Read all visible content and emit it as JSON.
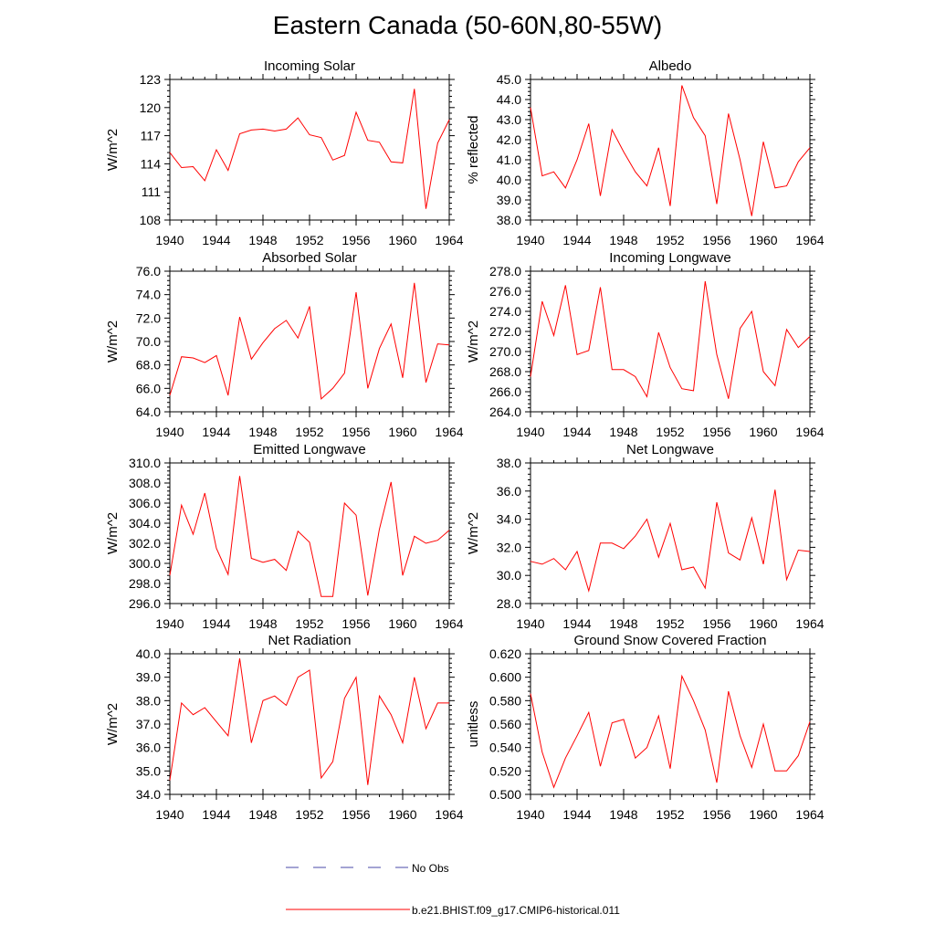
{
  "title": "Eastern Canada (50-60N,80-55W)",
  "colors": {
    "model_line": "#ff0000",
    "obs_line": "#4a4aa8",
    "axis": "#000000"
  },
  "legend": [
    {
      "label": "No Obs",
      "style": "dashed",
      "color": "#4a4aa8"
    },
    {
      "label": "b.e21.BHIST.f09_g17.CMIP6-historical.011",
      "style": "solid",
      "color": "#ff0000"
    }
  ],
  "chart_data": [
    {
      "type": "line",
      "title": "Incoming Solar",
      "xlabel": "",
      "ylabel": "W/m^2",
      "xlim": [
        1940,
        1964
      ],
      "ylim": [
        108,
        123
      ],
      "xticks": [
        1940,
        1944,
        1948,
        1952,
        1956,
        1960,
        1964
      ],
      "yticks": [
        108,
        111,
        114,
        117,
        120,
        123
      ],
      "ytick_labels": [
        "108",
        "111",
        "114",
        "117",
        "120",
        "123"
      ],
      "x": [
        1940,
        1941,
        1942,
        1943,
        1944,
        1945,
        1946,
        1947,
        1948,
        1949,
        1950,
        1951,
        1952,
        1953,
        1954,
        1955,
        1956,
        1957,
        1958,
        1959,
        1960,
        1961,
        1962,
        1963,
        1964
      ],
      "series": [
        {
          "name": "b.e21.BHIST.f09_g17.CMIP6-historical.011",
          "values": [
            115.2,
            113.6,
            113.7,
            112.2,
            115.5,
            113.3,
            117.2,
            117.6,
            117.7,
            117.5,
            117.7,
            118.9,
            117.1,
            116.8,
            114.4,
            114.9,
            119.5,
            116.5,
            116.3,
            114.2,
            114.1,
            122.0,
            109.2,
            116.2,
            118.7
          ]
        }
      ]
    },
    {
      "type": "line",
      "title": "Albedo",
      "xlabel": "",
      "ylabel": "% reflected",
      "xlim": [
        1940,
        1964
      ],
      "ylim": [
        38.0,
        45.0
      ],
      "xticks": [
        1940,
        1944,
        1948,
        1952,
        1956,
        1960,
        1964
      ],
      "yticks": [
        38,
        39,
        40,
        41,
        42,
        43,
        44,
        45
      ],
      "ytick_labels": [
        "38.0",
        "39.0",
        "40.0",
        "41.0",
        "42.0",
        "43.0",
        "44.0",
        "45.0"
      ],
      "x": [
        1940,
        1941,
        1942,
        1943,
        1944,
        1945,
        1946,
        1947,
        1948,
        1949,
        1950,
        1951,
        1952,
        1953,
        1954,
        1955,
        1956,
        1957,
        1958,
        1959,
        1960,
        1961,
        1962,
        1963,
        1964
      ],
      "series": [
        {
          "name": "b.e21.BHIST.f09_g17.CMIP6-historical.011",
          "values": [
            43.6,
            40.2,
            40.4,
            39.6,
            41.0,
            42.8,
            39.2,
            42.5,
            41.4,
            40.4,
            39.7,
            41.6,
            38.7,
            44.7,
            43.1,
            42.2,
            38.8,
            43.3,
            41.0,
            38.2,
            41.9,
            39.6,
            39.7,
            40.9,
            41.6
          ]
        }
      ]
    },
    {
      "type": "line",
      "title": "Absorbed Solar",
      "xlabel": "",
      "ylabel": "W/m^2",
      "xlim": [
        1940,
        1964
      ],
      "ylim": [
        64.0,
        76.0
      ],
      "xticks": [
        1940,
        1944,
        1948,
        1952,
        1956,
        1960,
        1964
      ],
      "yticks": [
        64,
        66,
        68,
        70,
        72,
        74,
        76
      ],
      "ytick_labels": [
        "64.0",
        "66.0",
        "68.0",
        "70.0",
        "72.0",
        "74.0",
        "76.0"
      ],
      "x": [
        1940,
        1941,
        1942,
        1943,
        1944,
        1945,
        1946,
        1947,
        1948,
        1949,
        1950,
        1951,
        1952,
        1953,
        1954,
        1955,
        1956,
        1957,
        1958,
        1959,
        1960,
        1961,
        1962,
        1963,
        1964
      ],
      "series": [
        {
          "name": "b.e21.BHIST.f09_g17.CMIP6-historical.011",
          "values": [
            65.4,
            68.7,
            68.6,
            68.2,
            68.8,
            65.4,
            72.1,
            68.5,
            69.9,
            71.1,
            71.8,
            70.3,
            73.0,
            65.1,
            66.0,
            67.3,
            74.2,
            66.0,
            69.4,
            71.5,
            66.9,
            75.0,
            66.5,
            69.8,
            69.7
          ]
        }
      ]
    },
    {
      "type": "line",
      "title": "Incoming Longwave",
      "xlabel": "",
      "ylabel": "W/m^2",
      "xlim": [
        1940,
        1964
      ],
      "ylim": [
        264.0,
        278.0
      ],
      "xticks": [
        1940,
        1944,
        1948,
        1952,
        1956,
        1960,
        1964
      ],
      "yticks": [
        264,
        266,
        268,
        270,
        272,
        274,
        276,
        278
      ],
      "ytick_labels": [
        "264.0",
        "266.0",
        "268.0",
        "270.0",
        "272.0",
        "274.0",
        "276.0",
        "278.0"
      ],
      "x": [
        1940,
        1941,
        1942,
        1943,
        1944,
        1945,
        1946,
        1947,
        1948,
        1949,
        1950,
        1951,
        1952,
        1953,
        1954,
        1955,
        1956,
        1957,
        1958,
        1959,
        1960,
        1961,
        1962,
        1963,
        1964
      ],
      "series": [
        {
          "name": "b.e21.BHIST.f09_g17.CMIP6-historical.011",
          "values": [
            267.5,
            275.0,
            271.6,
            276.6,
            269.7,
            270.1,
            276.4,
            268.2,
            268.2,
            267.5,
            265.5,
            271.9,
            268.4,
            266.3,
            266.1,
            277.0,
            269.7,
            265.3,
            272.3,
            274.0,
            268.0,
            266.6,
            272.2,
            270.4,
            271.5
          ]
        }
      ]
    },
    {
      "type": "line",
      "title": "Emitted Longwave",
      "xlabel": "",
      "ylabel": "W/m^2",
      "xlim": [
        1940,
        1964
      ],
      "ylim": [
        296.0,
        310.0
      ],
      "xticks": [
        1940,
        1944,
        1948,
        1952,
        1956,
        1960,
        1964
      ],
      "yticks": [
        296,
        298,
        300,
        302,
        304,
        306,
        308,
        310
      ],
      "ytick_labels": [
        "296.0",
        "298.0",
        "300.0",
        "302.0",
        "304.0",
        "306.0",
        "308.0",
        "310.0"
      ],
      "x": [
        1940,
        1941,
        1942,
        1943,
        1944,
        1945,
        1946,
        1947,
        1948,
        1949,
        1950,
        1951,
        1952,
        1953,
        1954,
        1955,
        1956,
        1957,
        1958,
        1959,
        1960,
        1961,
        1962,
        1963,
        1964
      ],
      "series": [
        {
          "name": "b.e21.BHIST.f09_g17.CMIP6-historical.011",
          "values": [
            298.8,
            305.8,
            302.9,
            307.0,
            301.5,
            298.9,
            308.7,
            300.5,
            300.1,
            300.4,
            299.3,
            303.2,
            302.1,
            296.7,
            296.7,
            306.0,
            304.8,
            296.8,
            303.4,
            308.1,
            298.8,
            302.7,
            302.0,
            302.3,
            303.3
          ]
        }
      ]
    },
    {
      "type": "line",
      "title": "Net Longwave",
      "xlabel": "",
      "ylabel": "W/m^2",
      "xlim": [
        1940,
        1964
      ],
      "ylim": [
        28.0,
        38.0
      ],
      "xticks": [
        1940,
        1944,
        1948,
        1952,
        1956,
        1960,
        1964
      ],
      "yticks": [
        28,
        30,
        32,
        34,
        36,
        38
      ],
      "ytick_labels": [
        "28.0",
        "30.0",
        "32.0",
        "34.0",
        "36.0",
        "38.0"
      ],
      "x": [
        1940,
        1941,
        1942,
        1943,
        1944,
        1945,
        1946,
        1947,
        1948,
        1949,
        1950,
        1951,
        1952,
        1953,
        1954,
        1955,
        1956,
        1957,
        1958,
        1959,
        1960,
        1961,
        1962,
        1963,
        1964
      ],
      "series": [
        {
          "name": "b.e21.BHIST.f09_g17.CMIP6-historical.011",
          "values": [
            31.0,
            30.8,
            31.2,
            30.4,
            31.7,
            28.9,
            32.3,
            32.3,
            31.9,
            32.8,
            34.0,
            31.3,
            33.7,
            30.4,
            30.6,
            29.1,
            35.2,
            31.6,
            31.1,
            34.1,
            30.8,
            36.1,
            29.7,
            31.8,
            31.7
          ]
        }
      ]
    },
    {
      "type": "line",
      "title": "Net Radiation",
      "xlabel": "",
      "ylabel": "W/m^2",
      "xlim": [
        1940,
        1964
      ],
      "ylim": [
        34.0,
        40.0
      ],
      "xticks": [
        1940,
        1944,
        1948,
        1952,
        1956,
        1960,
        1964
      ],
      "yticks": [
        34,
        35,
        36,
        37,
        38,
        39,
        40
      ],
      "ytick_labels": [
        "34.0",
        "35.0",
        "36.0",
        "37.0",
        "38.0",
        "39.0",
        "40.0"
      ],
      "x": [
        1940,
        1941,
        1942,
        1943,
        1944,
        1945,
        1946,
        1947,
        1948,
        1949,
        1950,
        1951,
        1952,
        1953,
        1954,
        1955,
        1956,
        1957,
        1958,
        1959,
        1960,
        1961,
        1962,
        1963,
        1964
      ],
      "series": [
        {
          "name": "b.e21.BHIST.f09_g17.CMIP6-historical.011",
          "values": [
            34.6,
            37.9,
            37.4,
            37.7,
            37.1,
            36.5,
            39.8,
            36.2,
            38.0,
            38.2,
            37.8,
            39.0,
            39.3,
            34.7,
            35.4,
            38.1,
            39.0,
            34.4,
            38.2,
            37.4,
            36.2,
            39.0,
            36.8,
            37.9,
            37.9
          ]
        }
      ]
    },
    {
      "type": "line",
      "title": "Ground Snow Covered Fraction",
      "xlabel": "",
      "ylabel": "unitless",
      "xlim": [
        1940,
        1964
      ],
      "ylim": [
        0.5,
        0.62
      ],
      "xticks": [
        1940,
        1944,
        1948,
        1952,
        1956,
        1960,
        1964
      ],
      "yticks": [
        0.5,
        0.52,
        0.54,
        0.56,
        0.58,
        0.6,
        0.62
      ],
      "ytick_labels": [
        "0.500",
        "0.520",
        "0.540",
        "0.560",
        "0.580",
        "0.600",
        "0.620"
      ],
      "x": [
        1940,
        1941,
        1942,
        1943,
        1944,
        1945,
        1946,
        1947,
        1948,
        1949,
        1950,
        1951,
        1952,
        1953,
        1954,
        1955,
        1956,
        1957,
        1958,
        1959,
        1960,
        1961,
        1962,
        1963,
        1964
      ],
      "series": [
        {
          "name": "b.e21.BHIST.f09_g17.CMIP6-historical.011",
          "values": [
            0.586,
            0.536,
            0.506,
            0.531,
            0.55,
            0.57,
            0.524,
            0.561,
            0.564,
            0.531,
            0.54,
            0.567,
            0.522,
            0.601,
            0.58,
            0.555,
            0.51,
            0.588,
            0.55,
            0.523,
            0.56,
            0.52,
            0.52,
            0.533,
            0.562
          ]
        }
      ]
    }
  ]
}
